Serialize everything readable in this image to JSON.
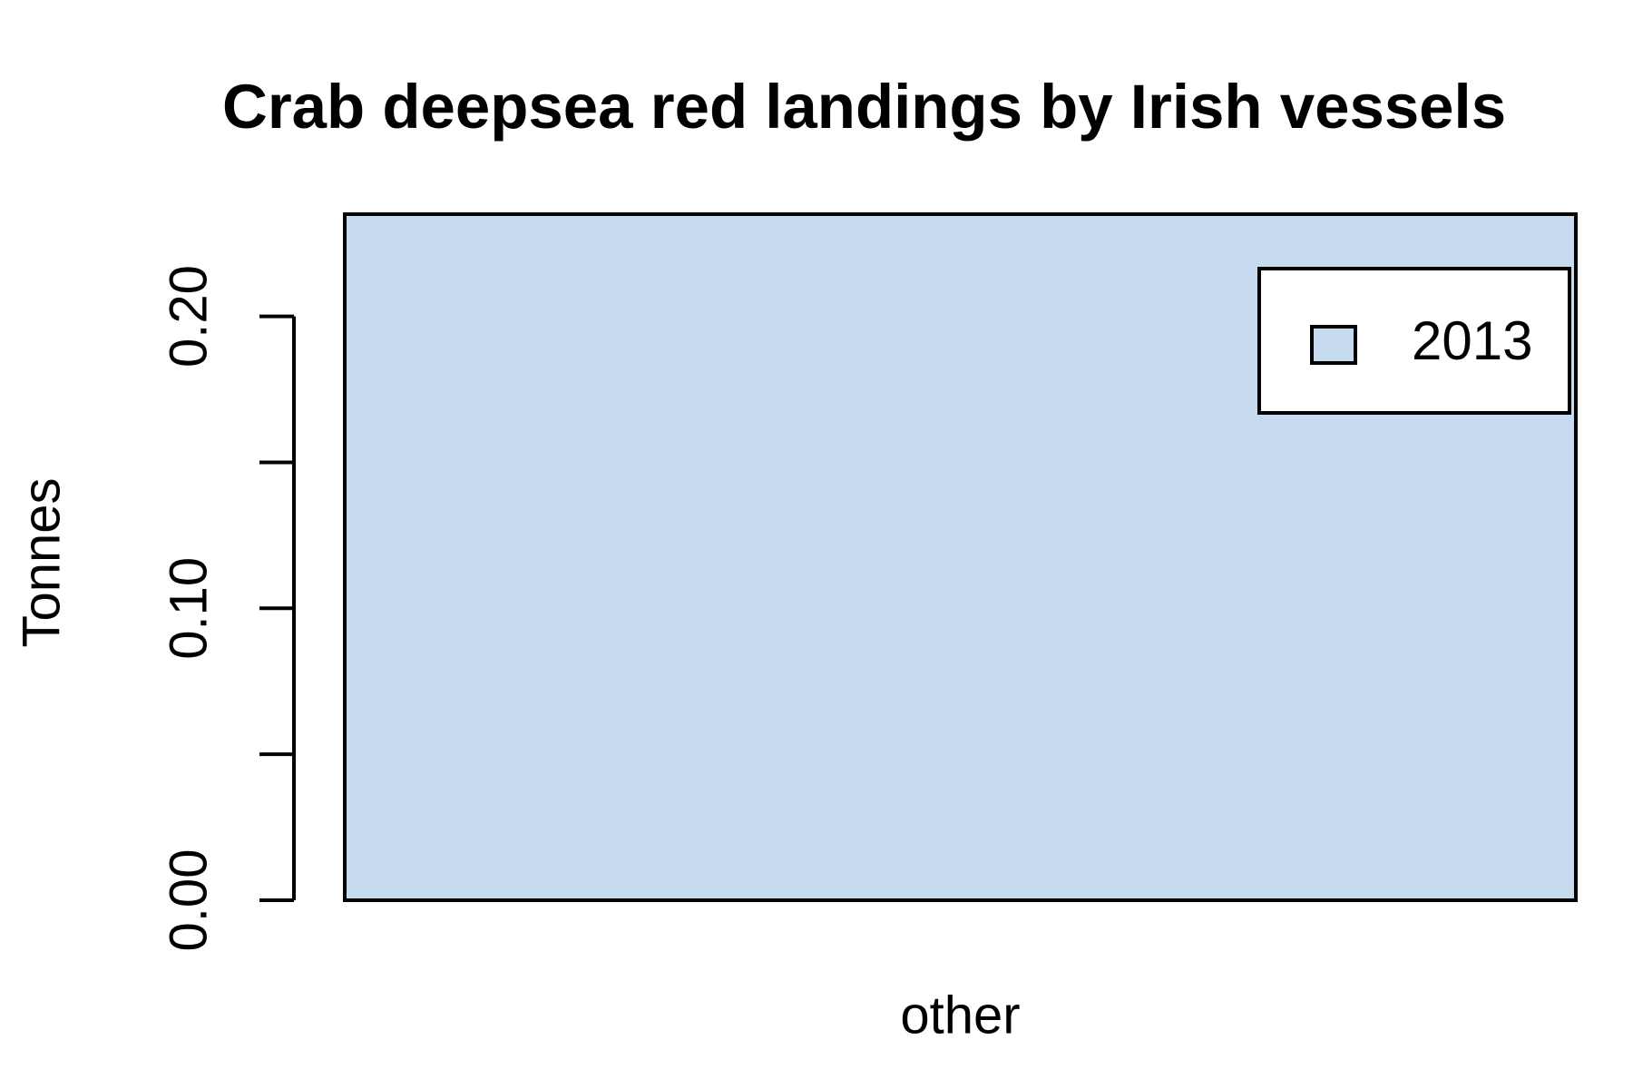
{
  "chart_data": {
    "type": "bar",
    "title": "Crab deepsea red landings by Irish vessels",
    "ylabel": "Tonnes",
    "categories": [
      "other"
    ],
    "series": [
      {
        "name": "2013",
        "color": "#c6dbef",
        "values": [
          0.235
        ]
      }
    ],
    "ylim": [
      0,
      0.235
    ],
    "yticks": [
      {
        "value": 0,
        "label": "0.00"
      },
      {
        "value": 0.1,
        "label": "0.10"
      },
      {
        "value": 0.2,
        "label": "0.20"
      }
    ],
    "yminor_ticks": [
      0.05,
      0.15
    ],
    "legend": "top-right"
  }
}
